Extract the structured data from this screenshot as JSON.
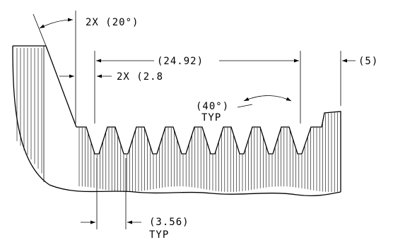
{
  "annotations": {
    "flank_angle": "2X (20°)",
    "overall_length": "(24.92)",
    "end_length": "(5)",
    "root_width": "2X (2.8",
    "thread_angle": "(40°)",
    "thread_angle_typ": "TYP",
    "pitch": "(3.56)",
    "pitch_typ": "TYP"
  }
}
